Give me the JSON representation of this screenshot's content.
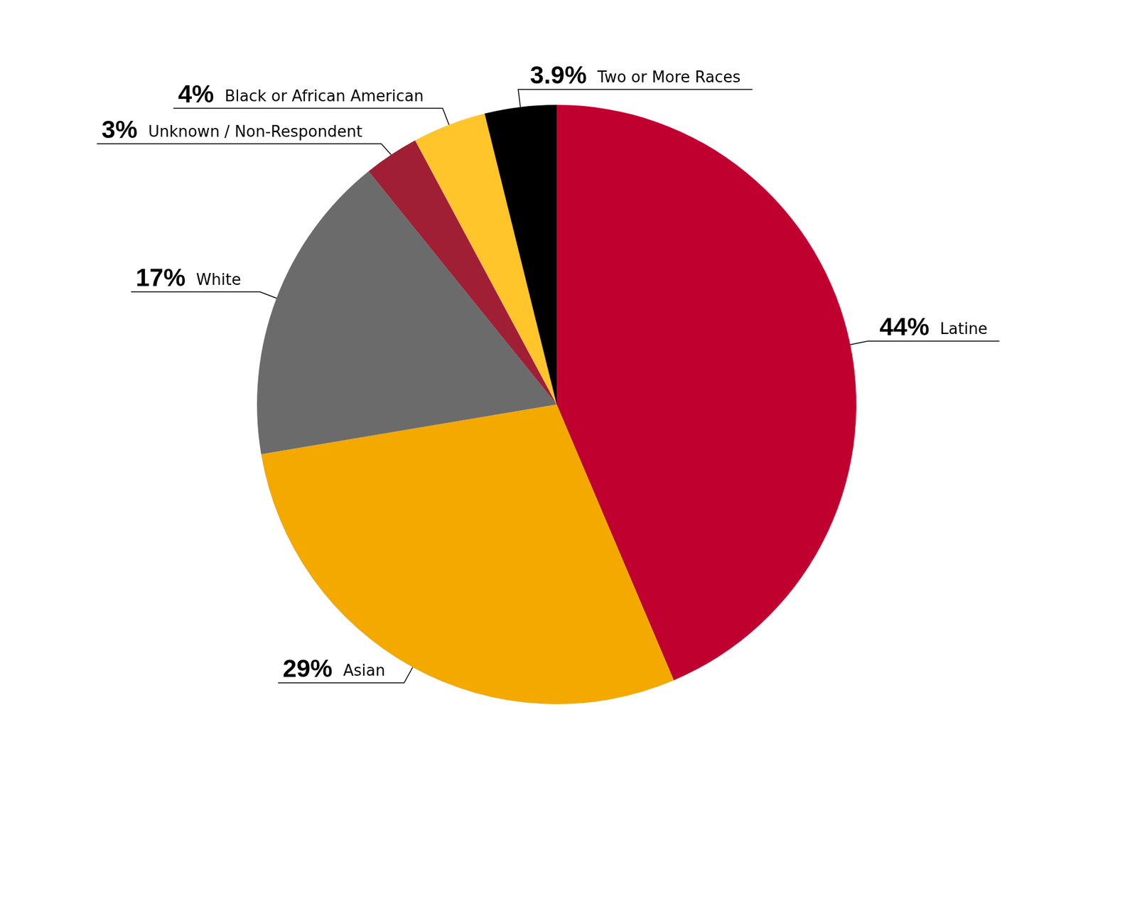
{
  "chart_data": {
    "type": "pie",
    "categories": [
      "Latine",
      "Asian",
      "White",
      "Unknown / Non-Respondent",
      "Black or African American",
      "Two or More Races"
    ],
    "values": [
      44,
      29,
      17,
      3,
      4,
      3.9
    ],
    "value_labels": [
      "44%",
      "29%",
      "17%",
      "3%",
      "4%",
      "3.9%"
    ],
    "colors": [
      "#c0002f",
      "#f4a900",
      "#6b6b6b",
      "#a01f34",
      "#ffc52b",
      "#000000"
    ],
    "data_labels": true
  }
}
